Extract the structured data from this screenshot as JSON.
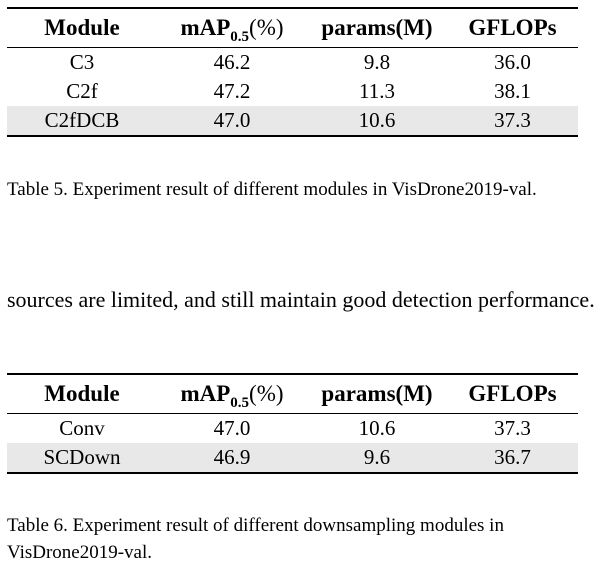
{
  "table5": {
    "headers": {
      "module": "Module",
      "map_main": "mAP",
      "map_sub": "0.5",
      "map_unit": "(%)",
      "params": "params(M)",
      "gflops": "GFLOPs"
    },
    "rows": [
      {
        "module": "C3",
        "map": "46.2",
        "params": "9.8",
        "gflops": "36.0"
      },
      {
        "module": "C2f",
        "map": "47.2",
        "params": "11.3",
        "gflops": "38.1"
      },
      {
        "module": "C2fDCB",
        "map": "47.0",
        "params": "10.6",
        "gflops": "37.3"
      }
    ],
    "caption": "Table 5. Experiment result of different modules in VisDrone2019-val."
  },
  "body_text": "sources are limited, and still maintain good detection performance.",
  "table6": {
    "headers": {
      "module": "Module",
      "map_main": "mAP",
      "map_sub": "0.5",
      "map_unit": "(%)",
      "params": "params(M)",
      "gflops": "GFLOPs"
    },
    "rows": [
      {
        "module": "Conv",
        "map": "47.0",
        "params": "10.6",
        "gflops": "37.3"
      },
      {
        "module": "SCDown",
        "map": "46.9",
        "params": "9.6",
        "gflops": "36.7"
      }
    ],
    "caption": "Table 6. Experiment result of different downsampling modules in VisDrone2019-val."
  },
  "colors": {
    "highlight_row": "#e8e8e8",
    "rule": "#000000"
  }
}
